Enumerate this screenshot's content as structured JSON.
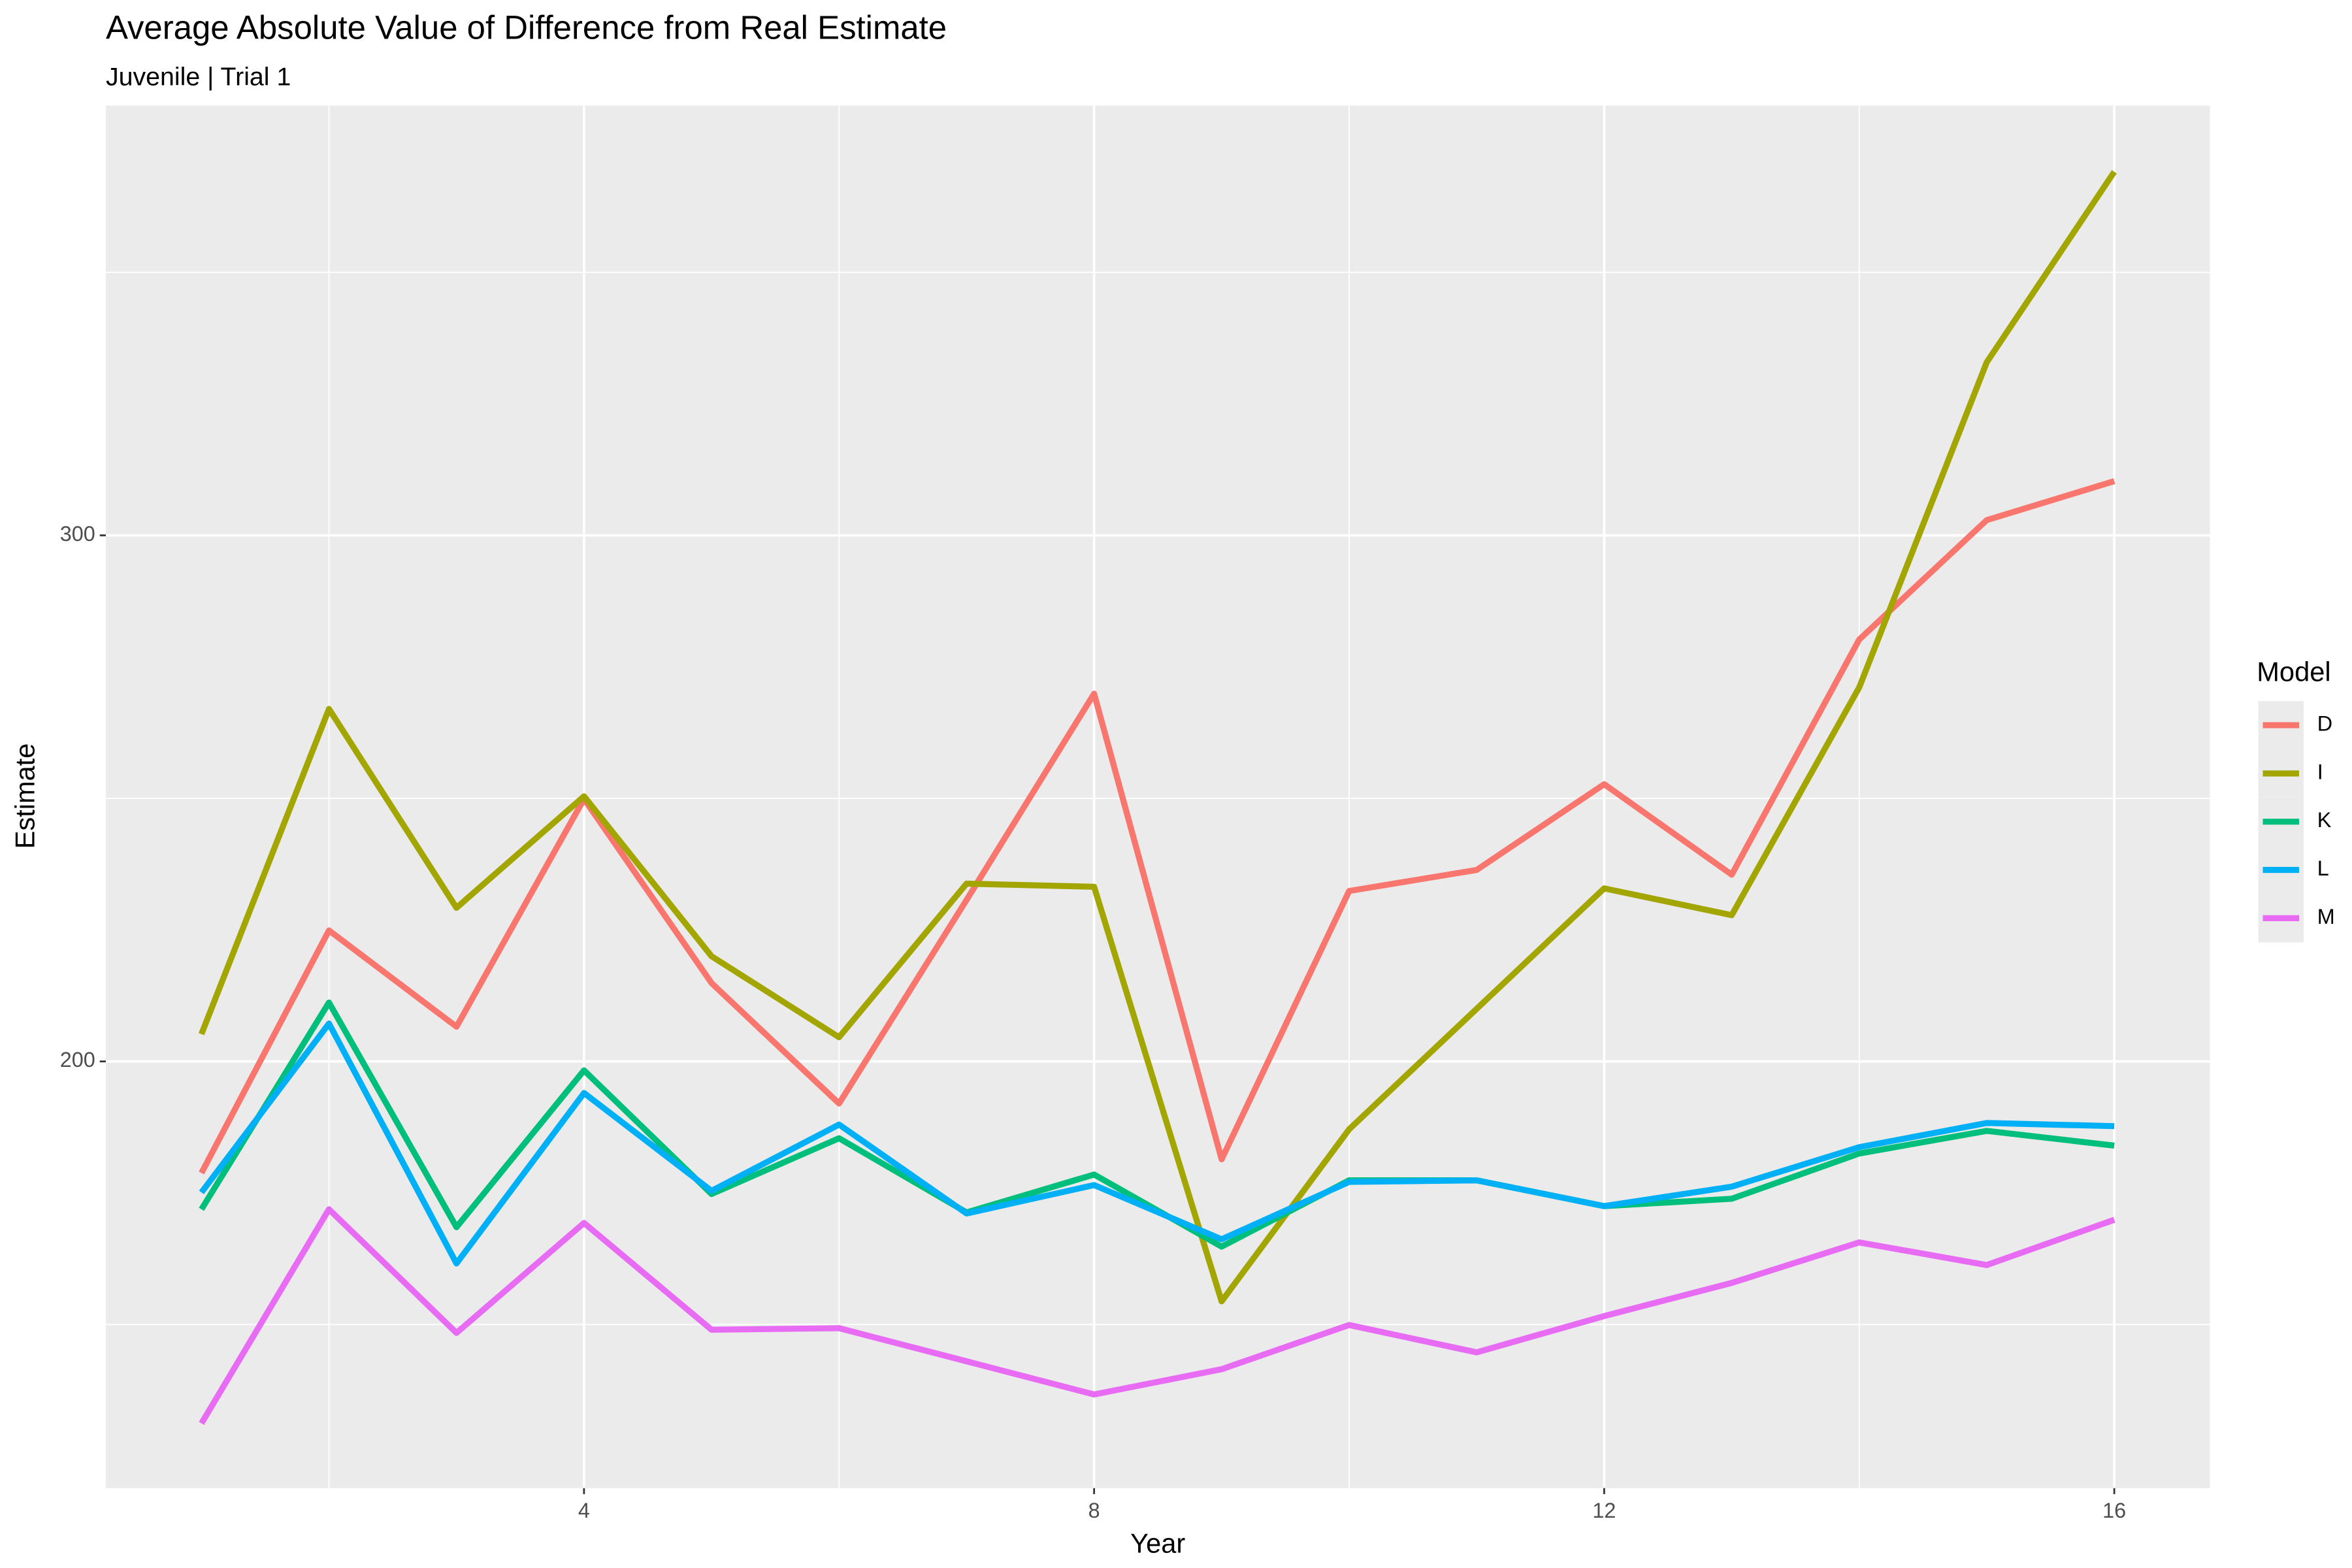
{
  "chart_data": {
    "type": "line",
    "title": "Average Absolute Value of Difference from Real Estimate",
    "subtitle": "Juvenile | Trial 1",
    "x_label": "Year",
    "y_label": "Estimate",
    "legend_title": "Model",
    "x": [
      1,
      2,
      3,
      4,
      5,
      6,
      7,
      8,
      9,
      10,
      11,
      12,
      13,
      14,
      15,
      16
    ],
    "series": [
      {
        "name": "D",
        "color": "#F8766D",
        "values": [
          178.8,
          224.9,
          206.6,
          249.9,
          214.9,
          192,
          230.7,
          269.9,
          181.4,
          232.4,
          236.4,
          252.7,
          235.5,
          280.2,
          302.9,
          310.3
        ]
      },
      {
        "name": "I",
        "color": "#A3A500",
        "values": [
          205.2,
          267,
          229.2,
          250.4,
          220,
          204.6,
          233.8,
          233.2,
          154.4,
          187.1,
          210,
          232.9,
          227.8,
          271.1,
          332.9,
          369.1
        ]
      },
      {
        "name": "K",
        "color": "#00BF7D",
        "values": [
          171.9,
          211.2,
          168.5,
          198.3,
          174.8,
          185.4,
          171.3,
          178.5,
          164.8,
          177.4,
          177.4,
          172.5,
          173.9,
          182.5,
          186.8,
          184
        ]
      },
      {
        "name": "L",
        "color": "#00B0F6",
        "values": [
          175.1,
          207.2,
          161.6,
          194,
          175.4,
          188,
          171.1,
          176.5,
          166.2,
          177.1,
          177.4,
          172.5,
          176.2,
          183.7,
          188.3,
          187.7
        ]
      },
      {
        "name": "M",
        "color": "#E76BF3",
        "values": [
          131.2,
          171.9,
          148.4,
          169.3,
          149,
          149.3,
          143,
          136.7,
          141.5,
          149.9,
          144.7,
          151.6,
          157.9,
          165.6,
          161.3,
          169.9
        ]
      }
    ],
    "xlim": [
      0.25,
      16.75
    ],
    "ylim": [
      118.9,
      381.7
    ],
    "xticks": [
      4,
      8,
      12,
      16
    ],
    "yticks": [
      200,
      300
    ],
    "x_minor_grid": [
      2,
      6,
      10,
      14
    ],
    "y_minor_grid": [
      150,
      250,
      350
    ],
    "grid": true,
    "legend_position": "right"
  }
}
